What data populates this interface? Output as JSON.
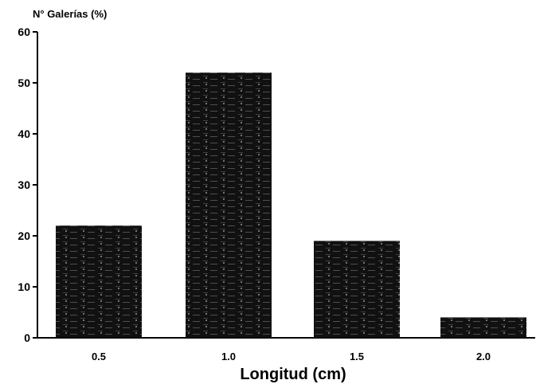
{
  "chart_data": {
    "type": "bar",
    "categories": [
      "0.5",
      "1.0",
      "1.5",
      "2.0"
    ],
    "values": [
      22,
      52,
      19,
      4
    ],
    "ylabel": "N° Galerías (%)",
    "xlabel": "Longitud (cm)",
    "ylim": [
      0,
      60
    ],
    "yticks": [
      0,
      10,
      20,
      30,
      40,
      50,
      60
    ],
    "grid": false,
    "legend": "none",
    "bar_color": "#111111",
    "texture_color": "#9a9a9a"
  }
}
